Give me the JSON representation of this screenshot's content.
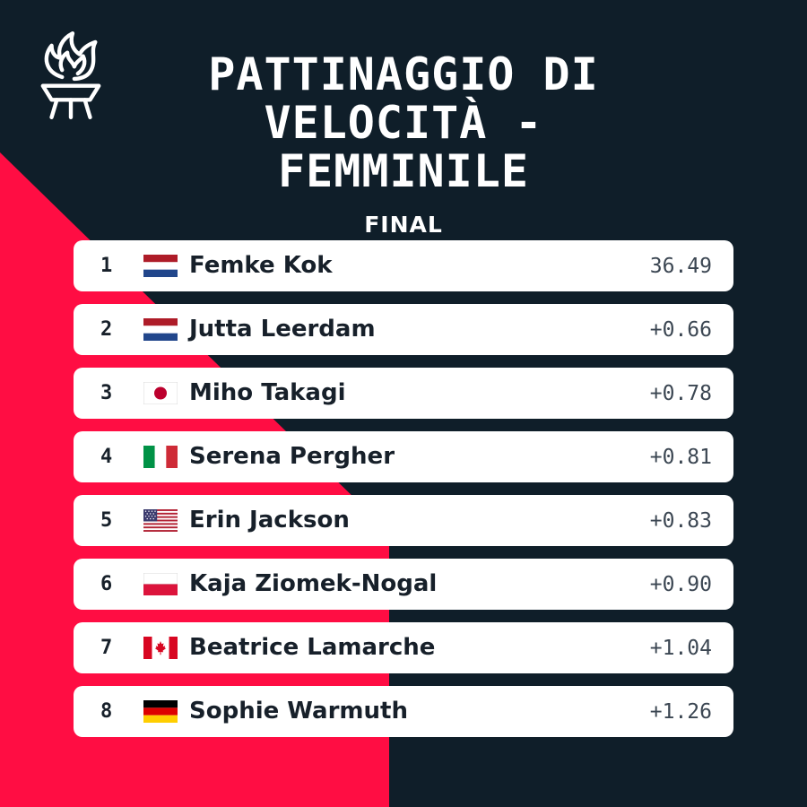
{
  "colors": {
    "background": "#0f1e29",
    "accent": "#ff0d43",
    "card": "#ffffff",
    "text": "#17202a"
  },
  "logo": {
    "icon": "torch-icon"
  },
  "header": {
    "title_lines": [
      "PATTINAGGIO DI",
      "VELOCITÀ -",
      "FEMMINILE"
    ],
    "subtitle": "FINAL"
  },
  "results": [
    {
      "rank": "1",
      "flag": "netherlands-flag-icon",
      "name": "Femke Kok",
      "time": "36.49"
    },
    {
      "rank": "2",
      "flag": "netherlands-flag-icon",
      "name": "Jutta Leerdam",
      "time": "+0.66"
    },
    {
      "rank": "3",
      "flag": "japan-flag-icon",
      "name": "Miho Takagi",
      "time": "+0.78"
    },
    {
      "rank": "4",
      "flag": "italy-flag-icon",
      "name": "Serena Pergher",
      "time": "+0.81"
    },
    {
      "rank": "5",
      "flag": "usa-flag-icon",
      "name": "Erin Jackson",
      "time": "+0.83"
    },
    {
      "rank": "6",
      "flag": "poland-flag-icon",
      "name": "Kaja Ziomek-Nogal",
      "time": "+0.90"
    },
    {
      "rank": "7",
      "flag": "canada-flag-icon",
      "name": "Beatrice Lamarche",
      "time": "+1.04"
    },
    {
      "rank": "8",
      "flag": "germany-flag-icon",
      "name": "Sophie Warmuth",
      "time": "+1.26"
    }
  ]
}
